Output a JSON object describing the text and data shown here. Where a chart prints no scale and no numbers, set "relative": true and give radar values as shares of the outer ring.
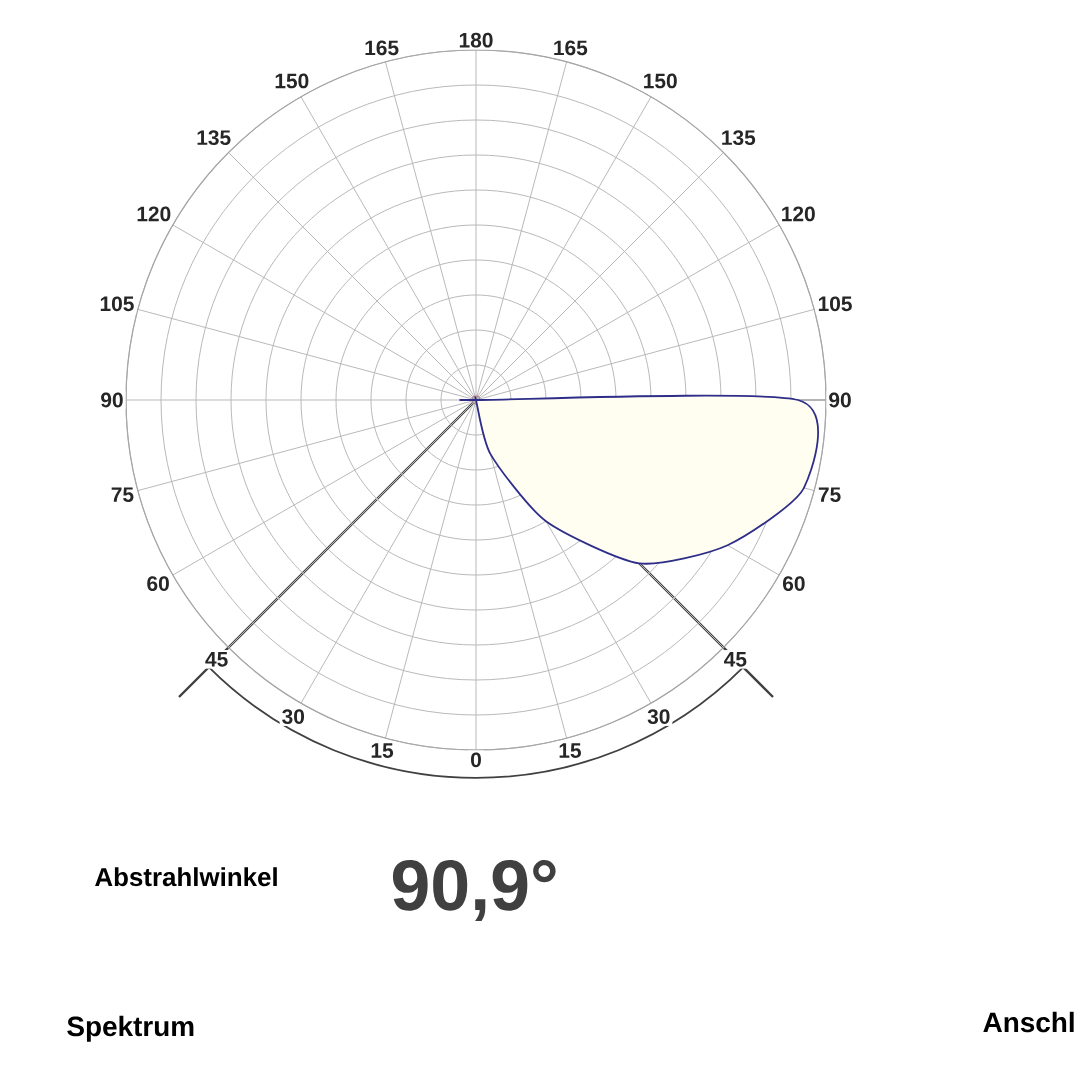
{
  "chart_data": {
    "type": "radar",
    "relative": true,
    "grid": true,
    "categories": [
      "180",
      "165",
      "150",
      "135",
      "120",
      "105",
      "90",
      "75",
      "60",
      "45",
      "30",
      "15",
      "0",
      "15",
      "30",
      "45",
      "60",
      "75",
      "90",
      "105",
      "120",
      "135",
      "150",
      "165"
    ],
    "series": [
      {
        "color": "#2e2e8a",
        "values": [
          0,
          0,
          0,
          0,
          0,
          0,
          0.92,
          0.97,
          0.83,
          0.66,
          0.4,
          0.16,
          0,
          0,
          0,
          0,
          0,
          0,
          0,
          0,
          0,
          0,
          0,
          0
        ]
      }
    ],
    "annotations": [
      "Abstrahlwinkel",
      "90,9°",
      "Spektrum",
      "Anschl"
    ]
  }
}
